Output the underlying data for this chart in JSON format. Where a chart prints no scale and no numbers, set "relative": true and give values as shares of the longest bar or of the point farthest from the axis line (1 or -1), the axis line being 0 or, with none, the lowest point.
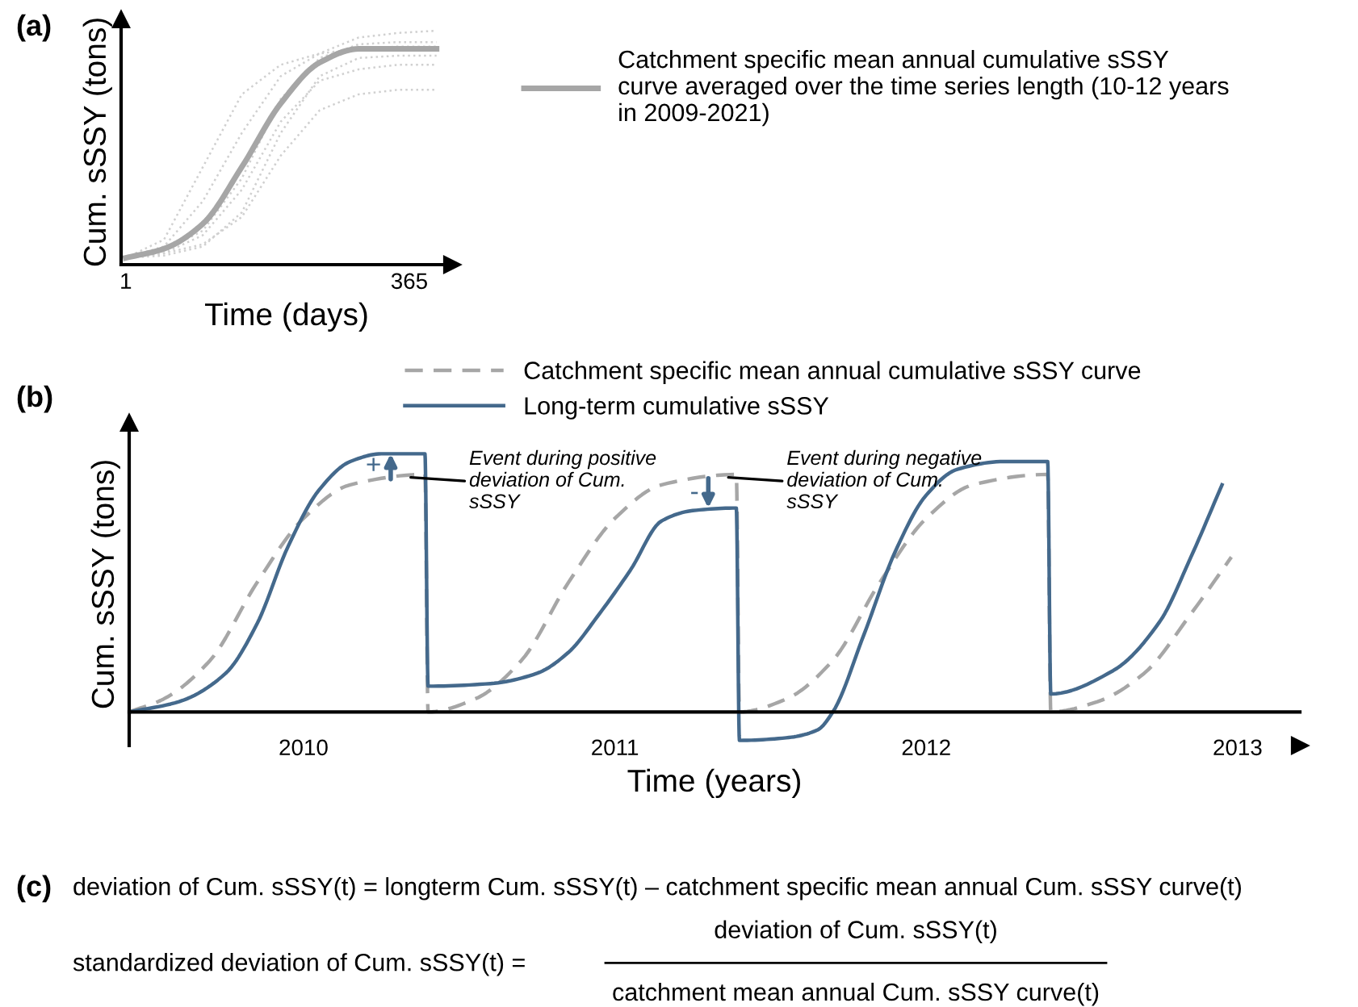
{
  "chart_data": [
    {
      "type": "line",
      "title": "(a)",
      "xlabel": "Time (days)",
      "ylabel": "Cum. sSSY (tons)",
      "relative": true,
      "xlim": [
        -5,
        420
      ],
      "xticks": [
        1,
        365
      ],
      "legend": "right",
      "grid": false,
      "series": [
        {
          "color": "#d0d0d0",
          "line_style": "dotted",
          "x": [
            1,
            50,
            100,
            150,
            200,
            250,
            300,
            350,
            400
          ],
          "values": [
            0,
            0.08,
            0.4,
            0.72,
            0.85,
            0.9,
            0.97,
            0.99,
            1.0
          ]
        },
        {
          "color": "#d0d0d0",
          "line_style": "dotted",
          "x": [
            1,
            50,
            100,
            150,
            200,
            250,
            300,
            350,
            400
          ],
          "values": [
            0,
            0.05,
            0.25,
            0.55,
            0.8,
            0.9,
            0.92,
            0.93,
            0.93
          ]
        },
        {
          "color": "#d0d0d0",
          "line_style": "dotted",
          "x": [
            1,
            50,
            100,
            150,
            200,
            250,
            300,
            350,
            400
          ],
          "values": [
            0,
            0.02,
            0.1,
            0.3,
            0.6,
            0.78,
            0.83,
            0.85,
            0.85
          ]
        },
        {
          "color": "#d0d0d0",
          "line_style": "dotted",
          "x": [
            1,
            50,
            100,
            150,
            200,
            250,
            300,
            350,
            400
          ],
          "values": [
            0,
            0.02,
            0.06,
            0.18,
            0.45,
            0.65,
            0.72,
            0.74,
            0.74
          ]
        },
        {
          "color": "#d0d0d0",
          "line_style": "dotted",
          "x": [
            1,
            50,
            100,
            150,
            200,
            250,
            300,
            350,
            400
          ],
          "values": [
            0,
            0.03,
            0.12,
            0.35,
            0.7,
            0.88,
            0.94,
            0.95,
            0.95
          ]
        },
        {
          "color": "#d0d0d0",
          "line_style": "dotted",
          "x": [
            1,
            50,
            100,
            150,
            200,
            250,
            300,
            350,
            400
          ],
          "values": [
            0,
            0.01,
            0.05,
            0.2,
            0.55,
            0.8,
            0.88,
            0.89,
            0.89
          ]
        },
        {
          "name": "Catchment specific mean annual cumulative sSSY\ncurve averaged over the time series length (10-12 years\nin 2009-2021)",
          "color": "#a6a6a6",
          "line_style": "solid",
          "x": [
            1,
            50,
            100,
            150,
            200,
            250,
            300,
            350,
            400
          ],
          "values": [
            0,
            0.04,
            0.15,
            0.4,
            0.68,
            0.86,
            0.92,
            0.92,
            0.92
          ]
        }
      ]
    },
    {
      "type": "line",
      "title": "(b)",
      "xlabel": "Time (years)",
      "ylabel": "Cum. sSSY (tons)",
      "relative": true,
      "xlim": [
        2009.44,
        2013.2
      ],
      "xticks": [
        2010,
        2011,
        2012,
        2013
      ],
      "legend": "top",
      "grid": false,
      "series": [
        {
          "name": "Catchment specific mean annual cumulative sSSY curve",
          "color": "#a6a6a6",
          "line_style": "dashed",
          "x": [
            2009.44,
            2009.55,
            2009.7,
            2009.85,
            2010.0,
            2010.15,
            2010.39,
            2010.4,
            2010.55,
            2010.7,
            2010.85,
            2011.0,
            2011.15,
            2011.39,
            2011.4,
            2011.55,
            2011.7,
            2011.85,
            2012.0,
            2012.15,
            2012.39,
            2012.4,
            2012.55,
            2012.7,
            2012.85,
            2012.98
          ],
          "values": [
            0,
            0.05,
            0.2,
            0.5,
            0.75,
            0.88,
            0.92,
            0,
            0.05,
            0.2,
            0.5,
            0.75,
            0.88,
            0.92,
            0,
            0.05,
            0.2,
            0.5,
            0.75,
            0.88,
            0.92,
            0,
            0.04,
            0.15,
            0.38,
            0.6
          ]
        },
        {
          "name": "Long-term cumulative sSSY",
          "color": "#44698c",
          "line_style": "solid",
          "x": [
            2009.44,
            2009.6,
            2009.75,
            2009.85,
            2009.95,
            2010.05,
            2010.15,
            2010.25,
            2010.39,
            2010.4,
            2010.6,
            2010.75,
            2010.85,
            2010.95,
            2011.05,
            2011.15,
            2011.25,
            2011.39,
            2011.4,
            2011.55,
            2011.65,
            2011.7,
            2011.8,
            2011.9,
            2012.0,
            2012.1,
            2012.25,
            2012.39,
            2012.4,
            2012.6,
            2012.75,
            2012.85,
            2012.95
          ],
          "values": [
            0,
            0.04,
            0.15,
            0.34,
            0.64,
            0.86,
            0.97,
            1.0,
            1.0,
            0.1,
            0.11,
            0.15,
            0.23,
            0.38,
            0.55,
            0.74,
            0.78,
            0.79,
            -0.11,
            -0.1,
            -0.07,
            0,
            0.3,
            0.62,
            0.84,
            0.94,
            0.97,
            0.97,
            0.07,
            0.16,
            0.35,
            0.6,
            0.88
          ]
        }
      ],
      "annotations": [
        {
          "text": "+",
          "x": 2010.28,
          "y": 1.0
        },
        {
          "text": "Event during positive\ndeviation of Cum.\nsSSY",
          "x": 2010.33,
          "y": 0.91
        },
        {
          "text": "-",
          "x": 2011.3,
          "y": 0.79
        },
        {
          "text": "Event during negative\ndeviation of Cum.\nsSSY",
          "x": 2011.35,
          "y": 0.91
        }
      ]
    },
    {
      "type": "other",
      "title": "(c)",
      "annotations": [
        "deviation of Cum. sSSY(t) = longterm Cum. sSSY(t) – catchment specific mean annual Cum. sSSY curve(t)",
        "standardized deviation of Cum. sSSY(t) =",
        "deviation of Cum. sSSY(t)",
        "catchment mean annual Cum. sSSY curve(t)"
      ]
    }
  ]
}
